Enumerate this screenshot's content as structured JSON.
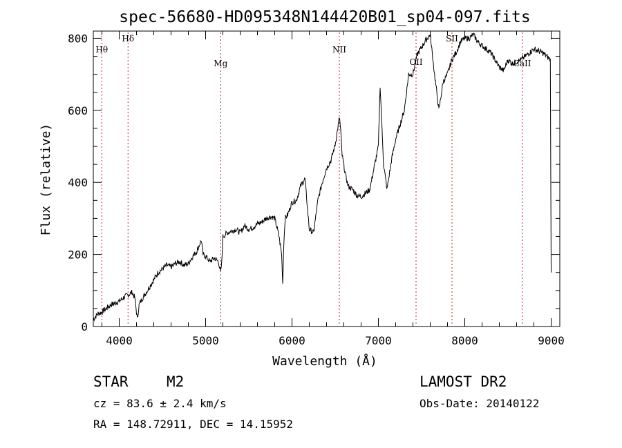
{
  "chart_data": {
    "type": "line",
    "title": "spec-56680-HD095348N144420B01_sp04-097.fits",
    "xlabel": "Wavelength (Å)",
    "ylabel": "Flux (relative)",
    "xlim": [
      3700,
      9100
    ],
    "ylim": [
      0,
      820
    ],
    "xticks": [
      4000,
      5000,
      6000,
      7000,
      8000,
      9000
    ],
    "yticks": [
      0,
      200,
      400,
      600,
      800
    ],
    "grid": false,
    "series": [
      {
        "color": "#000000",
        "x": [
          3700,
          3750,
          3800,
          3850,
          3900,
          3950,
          4000,
          4050,
          4100,
          4150,
          4180,
          4210,
          4230,
          4260,
          4300,
          4350,
          4400,
          4450,
          4500,
          4550,
          4600,
          4650,
          4700,
          4750,
          4800,
          4850,
          4900,
          4950,
          4970,
          5000,
          5050,
          5100,
          5150,
          5170,
          5185,
          5200,
          5250,
          5300,
          5350,
          5400,
          5450,
          5500,
          5550,
          5600,
          5650,
          5700,
          5750,
          5800,
          5850,
          5880,
          5893,
          5905,
          5920,
          5950,
          6000,
          6050,
          6100,
          6150,
          6200,
          6250,
          6300,
          6350,
          6400,
          6450,
          6500,
          6550,
          6563,
          6580,
          6620,
          6650,
          6700,
          6750,
          6800,
          6850,
          6900,
          6950,
          7000,
          7020,
          7040,
          7060,
          7100,
          7150,
          7200,
          7250,
          7300,
          7350,
          7400,
          7450,
          7500,
          7550,
          7600,
          7650,
          7680,
          7700,
          7750,
          7800,
          7850,
          7900,
          7950,
          8000,
          8050,
          8100,
          8150,
          8200,
          8250,
          8300,
          8350,
          8400,
          8450,
          8500,
          8550,
          8600,
          8650,
          8700,
          8750,
          8800,
          8850,
          8900,
          8950,
          8990,
          9000
        ],
        "values": [
          20,
          35,
          40,
          50,
          60,
          65,
          70,
          80,
          88,
          95,
          80,
          20,
          60,
          75,
          90,
          110,
          130,
          150,
          160,
          170,
          165,
          175,
          180,
          170,
          175,
          195,
          210,
          240,
          200,
          195,
          180,
          190,
          180,
          150,
          170,
          250,
          260,
          265,
          270,
          260,
          280,
          270,
          275,
          285,
          290,
          300,
          305,
          300,
          250,
          200,
          120,
          230,
          300,
          310,
          345,
          350,
          390,
          410,
          270,
          260,
          350,
          400,
          440,
          460,
          505,
          580,
          545,
          475,
          420,
          390,
          380,
          365,
          360,
          370,
          380,
          440,
          500,
          670,
          560,
          450,
          380,
          460,
          520,
          560,
          600,
          700,
          700,
          755,
          775,
          795,
          810,
          700,
          640,
          600,
          680,
          700,
          740,
          760,
          790,
          800,
          800,
          810,
          790,
          780,
          770,
          760,
          740,
          720,
          710,
          740,
          730,
          735,
          740,
          750,
          760,
          770,
          765,
          760,
          750,
          740,
          150
        ]
      }
    ],
    "lines": [
      {
        "label": "Hθ",
        "x": 3798
      },
      {
        "label": "Hδ",
        "x": 4102
      },
      {
        "label": "Mg",
        "x": 5175
      },
      {
        "label": "NII",
        "x": 6548
      },
      {
        "label": "OII",
        "x": 7436
      },
      {
        "label": "SII",
        "x": 7852
      },
      {
        "label": "CaII",
        "x": 8665
      }
    ]
  },
  "info": {
    "object_class": "STAR",
    "subclass": "M2",
    "survey": "LAMOST DR2",
    "redshift": "cz = 83.6 ± 2.4 km/s",
    "obs_date": "Obs-Date: 20140122",
    "coords": "RA = 148.72911, DEC =  14.15952"
  }
}
